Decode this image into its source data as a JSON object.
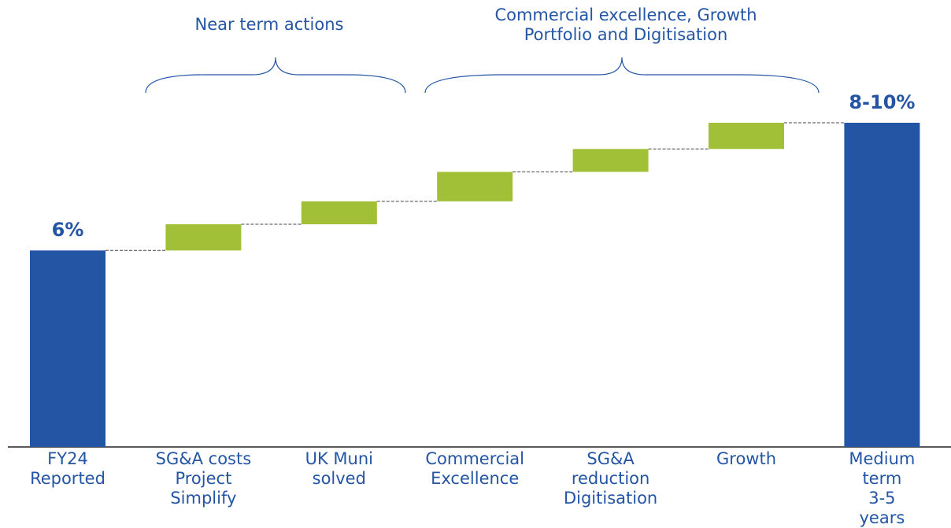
{
  "chart_data": {
    "type": "waterfall",
    "categories": [
      "FY24\nReported",
      "SG&A costs\nProject\nSimplify",
      "UK Muni\nsolved",
      "Commercial\nExcellence",
      "SG&A\nreduction\nDigitisation",
      "Growth",
      "Medium term\n3-5 years"
    ],
    "measures": [
      "absolute",
      "relative",
      "relative",
      "relative",
      "relative",
      "relative",
      "total"
    ],
    "values": [
      6,
      0.8,
      0.7,
      0.9,
      0.7,
      0.8,
      9.9
    ],
    "value_labels": [
      "6%",
      null,
      null,
      null,
      null,
      null,
      "8-10%"
    ],
    "total_color": "#2455a4",
    "increase_color": "#a2c037",
    "annotations": [
      "Near term actions",
      "Commercial excellence, Growth\nPortfolio and Digitisation"
    ]
  }
}
